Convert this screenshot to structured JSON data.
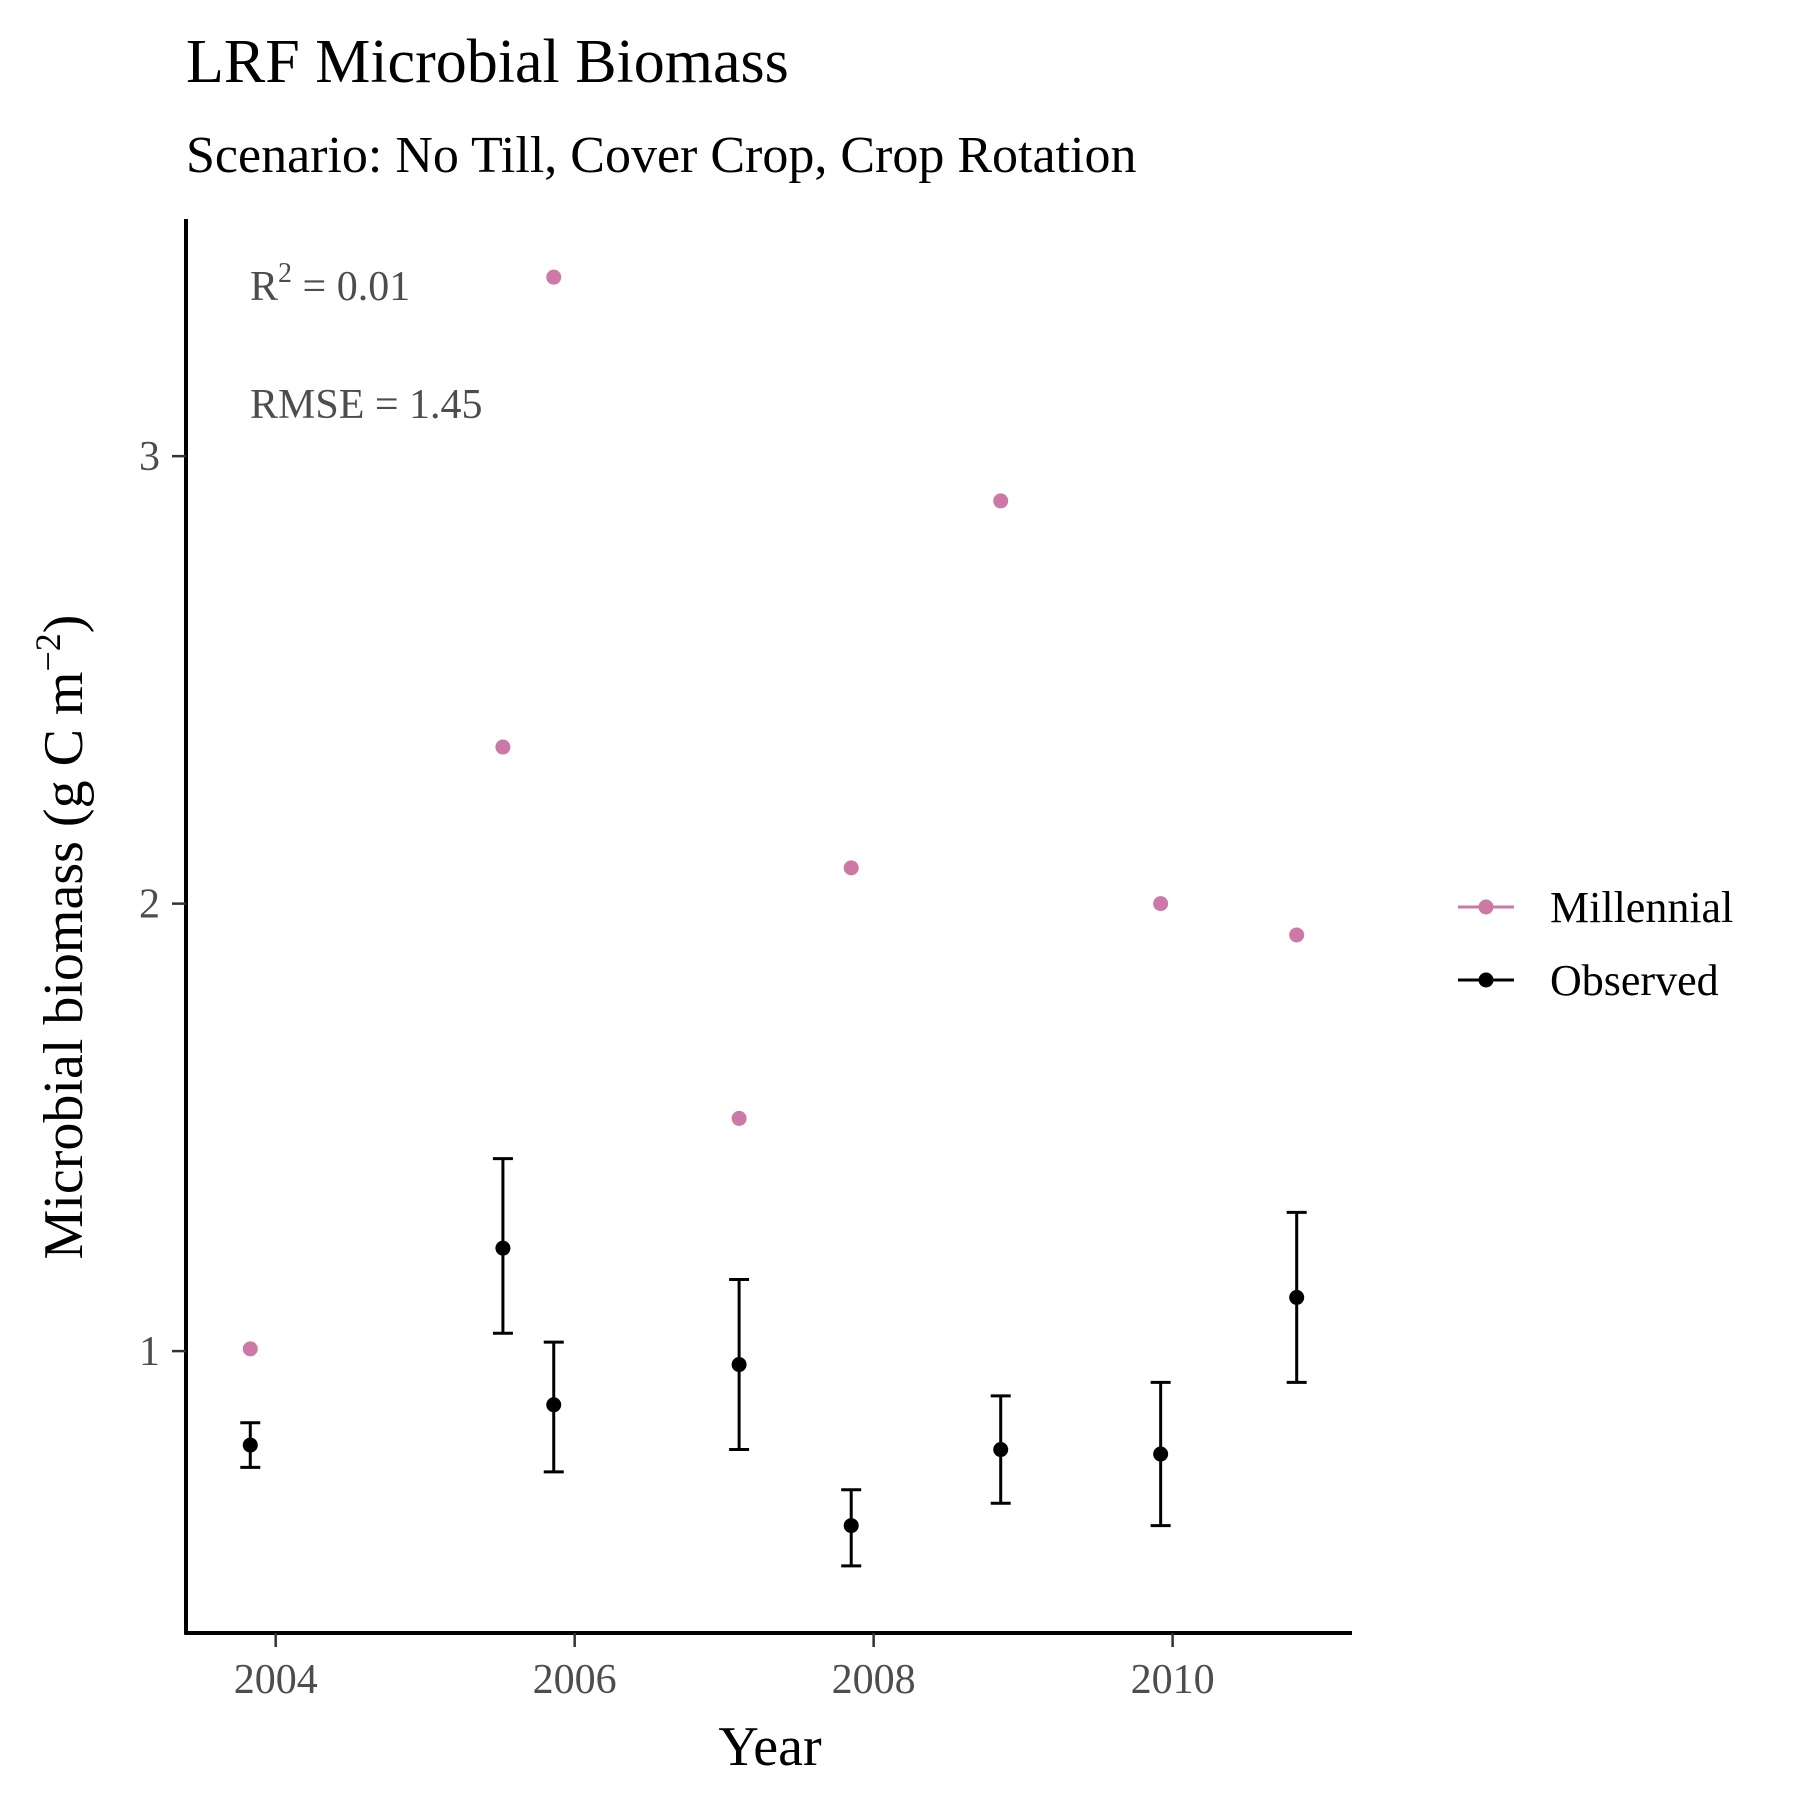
{
  "chart_data": {
    "type": "scatter",
    "title": "LRF Microbial Biomass",
    "subtitle": "Scenario: No Till, Cover Crop, Crop Rotation",
    "xlabel": "Year",
    "ylabel_main": "Microbial biomass (g C m",
    "ylabel_sup": "−2",
    "ylabel_close": ")",
    "xlim": [
      2003.4,
      2011.2
    ],
    "ylim": [
      0.37,
      3.53
    ],
    "x_ticks": [
      2004,
      2006,
      2008,
      2010
    ],
    "y_ticks": [
      1,
      2,
      3
    ],
    "grid": false,
    "legend_position": "right",
    "annotations": {
      "r2_base": "R",
      "r2_sup": "2",
      "r2_value": " = 0.01",
      "rmse": "RMSE = 1.45"
    },
    "series": [
      {
        "name": "Millennial",
        "color": "#cc79a7",
        "points": [
          {
            "x": 2003.83,
            "y": 1.005
          },
          {
            "x": 2005.52,
            "y": 2.35
          },
          {
            "x": 2005.86,
            "y": 3.4
          },
          {
            "x": 2007.1,
            "y": 1.52
          },
          {
            "x": 2007.85,
            "y": 2.08
          },
          {
            "x": 2008.85,
            "y": 2.9
          },
          {
            "x": 2009.92,
            "y": 2.0
          },
          {
            "x": 2010.83,
            "y": 1.93
          }
        ]
      },
      {
        "name": "Observed",
        "color": "#000000",
        "points": [
          {
            "x": 2003.83,
            "y": 0.79,
            "ymin": 0.74,
            "ymax": 0.84
          },
          {
            "x": 2005.52,
            "y": 1.23,
            "ymin": 1.04,
            "ymax": 1.43
          },
          {
            "x": 2005.86,
            "y": 0.88,
            "ymin": 0.73,
            "ymax": 1.02
          },
          {
            "x": 2007.1,
            "y": 0.97,
            "ymin": 0.78,
            "ymax": 1.16
          },
          {
            "x": 2007.85,
            "y": 0.61,
            "ymin": 0.52,
            "ymax": 0.69
          },
          {
            "x": 2008.85,
            "y": 0.78,
            "ymin": 0.66,
            "ymax": 0.9
          },
          {
            "x": 2009.92,
            "y": 0.77,
            "ymin": 0.61,
            "ymax": 0.93
          },
          {
            "x": 2010.83,
            "y": 1.12,
            "ymin": 0.93,
            "ymax": 1.31
          }
        ]
      }
    ]
  }
}
